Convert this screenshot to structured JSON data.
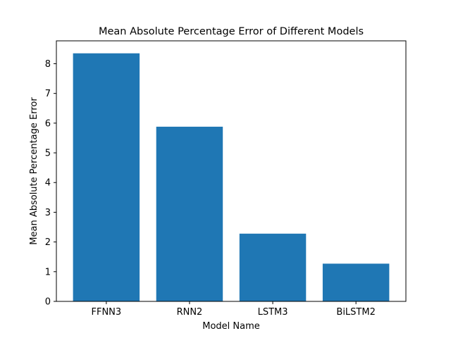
{
  "chart_data": {
    "type": "bar",
    "title": "Mean Absolute Percentage Error of Different Models",
    "xlabel": "Model Name",
    "ylabel": "Mean Absolute Percentage Error",
    "categories": [
      "FFNN3",
      "RNN2",
      "LSTM3",
      "BiLSTM2"
    ],
    "values": [
      8.35,
      5.88,
      2.28,
      1.27
    ],
    "ylim": [
      0,
      8.77
    ],
    "yticks": [
      0,
      1,
      2,
      3,
      4,
      5,
      6,
      7,
      8
    ],
    "grid": false,
    "legend": "none",
    "bar_color": "#1f77b4"
  }
}
